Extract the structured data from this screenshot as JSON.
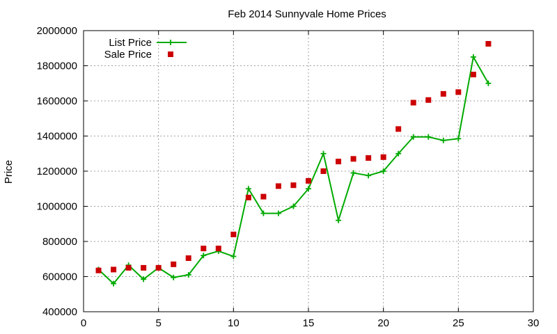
{
  "chart_data": {
    "type": "line",
    "title": "Feb 2014 Sunnyvale Home Prices",
    "xlabel": "",
    "ylabel": "Price",
    "xlim": [
      0,
      30
    ],
    "ylim": [
      400000,
      2000000
    ],
    "x_ticks": [
      0,
      5,
      10,
      15,
      20,
      25,
      30
    ],
    "y_ticks": [
      400000,
      600000,
      800000,
      1000000,
      1200000,
      1400000,
      1600000,
      1800000,
      2000000
    ],
    "grid": true,
    "legend_position": "top-left",
    "series": [
      {
        "name": "List Price",
        "type": "line",
        "marker": "plus",
        "color": "#00aa00",
        "x": [
          1,
          2,
          3,
          4,
          5,
          6,
          7,
          8,
          9,
          10,
          11,
          12,
          13,
          14,
          15,
          16,
          17,
          18,
          19,
          20,
          21,
          22,
          23,
          24,
          25,
          26,
          27
        ],
        "values": [
          640000,
          560000,
          665000,
          585000,
          650000,
          595000,
          610000,
          720000,
          745000,
          715000,
          1100000,
          960000,
          960000,
          1000000,
          1100000,
          1300000,
          920000,
          1190000,
          1175000,
          1200000,
          1300000,
          1395000,
          1395000,
          1375000,
          1385000,
          1850000,
          1700000
        ]
      },
      {
        "name": "Sale Price",
        "type": "scatter",
        "marker": "square",
        "color": "#cc0000",
        "x": [
          1,
          2,
          3,
          4,
          5,
          6,
          7,
          8,
          9,
          10,
          11,
          12,
          13,
          14,
          15,
          16,
          17,
          18,
          19,
          20,
          21,
          22,
          23,
          24,
          25,
          26,
          27
        ],
        "values": [
          635000,
          640000,
          650000,
          650000,
          650000,
          670000,
          705000,
          760000,
          760000,
          840000,
          1050000,
          1055000,
          1115000,
          1120000,
          1145000,
          1200000,
          1255000,
          1270000,
          1275000,
          1280000,
          1440000,
          1590000,
          1605000,
          1640000,
          1650000,
          1750000,
          1925000
        ]
      }
    ]
  }
}
